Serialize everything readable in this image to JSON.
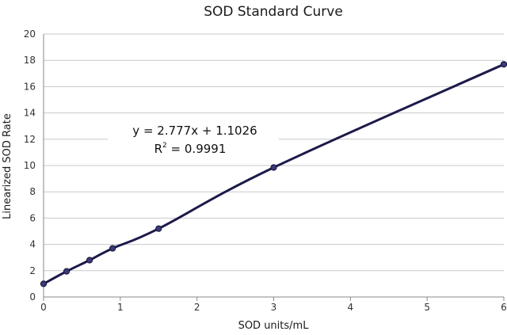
{
  "chart_data": {
    "type": "line",
    "title": "SOD Standard Curve",
    "xlabel": "SOD units/mL",
    "ylabel": "Linearized SOD Rate",
    "xlim": [
      0,
      6
    ],
    "ylim": [
      0,
      20
    ],
    "x_ticks": [
      "0",
      "1",
      "2",
      "3",
      "4",
      "5",
      "6"
    ],
    "y_ticks": [
      "0",
      "2",
      "4",
      "6",
      "8",
      "10",
      "12",
      "14",
      "16",
      "18",
      "20"
    ],
    "grid": "horizontal",
    "legend": "none",
    "series": [
      {
        "x": [
          0,
          0.3,
          0.6,
          0.9,
          1.5,
          3,
          6
        ],
        "y": [
          1.0,
          1.95,
          2.8,
          3.7,
          5.2,
          9.85,
          17.7
        ],
        "color": "#1c1a4a",
        "marker_color": "#3a3a7a"
      }
    ],
    "annotation": {
      "equation": "y = 2.777x + 1.1026",
      "r_squared_base": "R",
      "r_squared_exp": "2",
      "r_squared_value": " = 0.9991"
    }
  }
}
